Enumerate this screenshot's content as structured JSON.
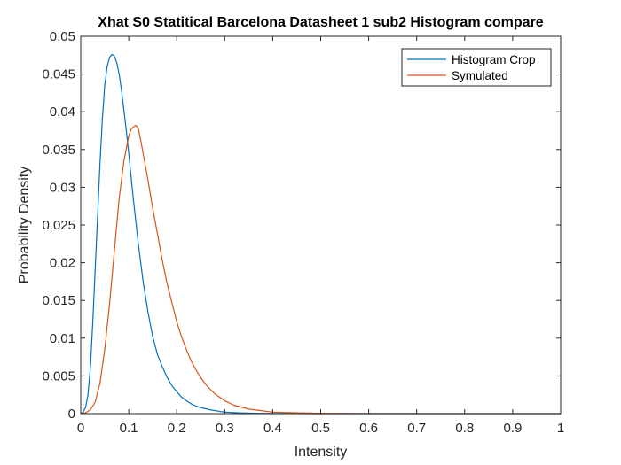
{
  "chart_data": {
    "type": "line",
    "title": "Xhat S0 Statitical Barcelona Datasheet 1 sub2  Histogram compare",
    "xlabel": "Intensity",
    "ylabel": "Probability Density",
    "xlim": [
      0,
      1
    ],
    "ylim": [
      0,
      0.05
    ],
    "xticks": [
      "0",
      "0.1",
      "0.2",
      "0.3",
      "0.4",
      "0.5",
      "0.6",
      "0.7",
      "0.8",
      "0.9",
      "1"
    ],
    "yticks": [
      "0",
      "0.005",
      "0.01",
      "0.015",
      "0.02",
      "0.025",
      "0.03",
      "0.035",
      "0.04",
      "0.045",
      "0.05"
    ],
    "grid": false,
    "legend_position": "top-right",
    "series": [
      {
        "name": "Histogram Crop",
        "color": "#0072BD",
        "x": [
          0,
          0.005,
          0.01,
          0.015,
          0.02,
          0.025,
          0.03,
          0.035,
          0.04,
          0.045,
          0.05,
          0.055,
          0.06,
          0.065,
          0.07,
          0.075,
          0.08,
          0.085,
          0.09,
          0.095,
          0.1,
          0.11,
          0.12,
          0.13,
          0.14,
          0.15,
          0.16,
          0.17,
          0.18,
          0.19,
          0.2,
          0.21,
          0.22,
          0.23,
          0.24,
          0.25,
          0.27,
          0.3,
          0.33,
          0.36,
          0.4,
          0.45,
          0.5,
          0.6,
          0.8,
          1.0
        ],
        "y": [
          0,
          0.0002,
          0.0008,
          0.0025,
          0.006,
          0.012,
          0.019,
          0.026,
          0.033,
          0.039,
          0.0435,
          0.046,
          0.0472,
          0.0476,
          0.0474,
          0.0465,
          0.045,
          0.0428,
          0.0402,
          0.0375,
          0.0345,
          0.0282,
          0.0225,
          0.0175,
          0.0135,
          0.0102,
          0.0078,
          0.0062,
          0.0048,
          0.0037,
          0.0029,
          0.0022,
          0.0017,
          0.0013,
          0.001,
          0.0008,
          0.0005,
          0.0002,
          0.0001,
          5e-05,
          2e-05,
          1e-05,
          0,
          0,
          0,
          0
        ]
      },
      {
        "name": "Symulated",
        "color": "#D95319",
        "x": [
          0,
          0.01,
          0.02,
          0.03,
          0.04,
          0.05,
          0.06,
          0.07,
          0.08,
          0.09,
          0.1,
          0.105,
          0.11,
          0.115,
          0.12,
          0.125,
          0.13,
          0.14,
          0.15,
          0.16,
          0.17,
          0.18,
          0.19,
          0.2,
          0.21,
          0.22,
          0.23,
          0.24,
          0.25,
          0.26,
          0.27,
          0.28,
          0.3,
          0.32,
          0.35,
          0.4,
          0.45,
          0.5,
          0.6,
          0.8,
          1.0
        ],
        "y": [
          0,
          0.0001,
          0.0005,
          0.0015,
          0.004,
          0.0085,
          0.0145,
          0.0215,
          0.0285,
          0.0335,
          0.0368,
          0.0377,
          0.038,
          0.0382,
          0.0378,
          0.0362,
          0.0345,
          0.031,
          0.0272,
          0.0238,
          0.0203,
          0.0172,
          0.0147,
          0.0122,
          0.0102,
          0.0085,
          0.007,
          0.0058,
          0.0048,
          0.0039,
          0.0032,
          0.0026,
          0.0017,
          0.0011,
          0.0006,
          0.0002,
          0.0001,
          4e-05,
          1e-05,
          0,
          0
        ]
      }
    ]
  }
}
